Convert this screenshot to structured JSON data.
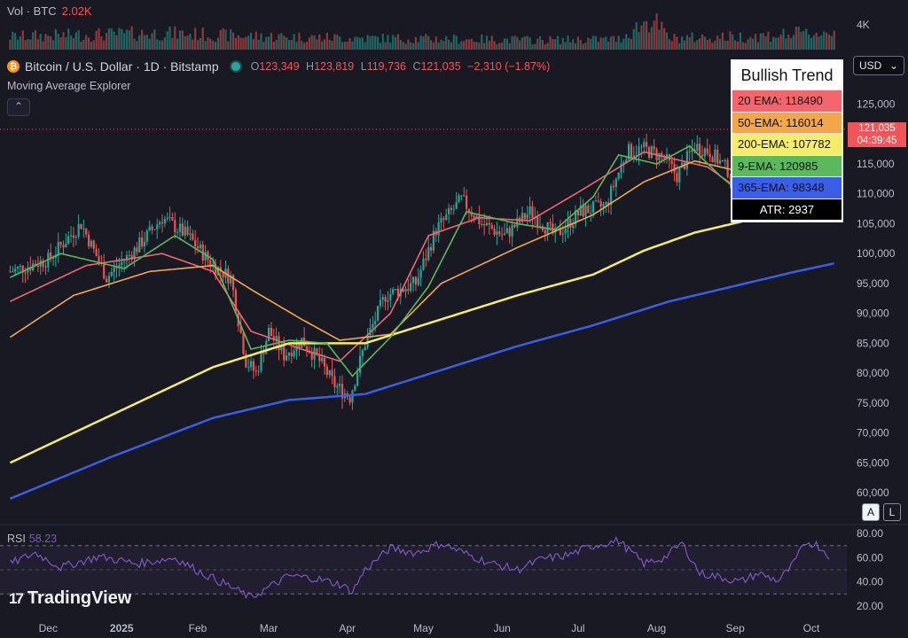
{
  "volume": {
    "label": "Vol · BTC",
    "value": "2.02K",
    "axis_label": "4K"
  },
  "header": {
    "title": "Bitcoin / U.S. Dollar · 1D · Bitstamp",
    "ohlc": [
      {
        "k": "O",
        "v": "123,349"
      },
      {
        "k": "H",
        "v": "123,819"
      },
      {
        "k": "L",
        "v": "119,736"
      },
      {
        "k": "C",
        "v": "121,035"
      }
    ],
    "change": "−2,310 (−1.87%)",
    "indicator": "Moving Average Explorer",
    "collapse_icon": "chevron-up-icon"
  },
  "currency": {
    "selected": "USD"
  },
  "price_tag": {
    "price": "121,035",
    "countdown": "04:39:45"
  },
  "legend": {
    "title": "Bullish Trend",
    "rows": [
      {
        "text": "20 EMA: 118490",
        "color": "#f2666e"
      },
      {
        "text": "50-EMA: 116014",
        "color": "#f5a54a"
      },
      {
        "text": "200-EMA: 107782",
        "color": "#f4ec6a"
      },
      {
        "text": "9-EMA: 120985",
        "color": "#5cb85c"
      },
      {
        "text": "365-EMA: 98348",
        "color": "#3a5ee8"
      }
    ],
    "atr": "ATR: 2937"
  },
  "rsi": {
    "label": "RSI",
    "value": "58.23"
  },
  "scale_buttons": [
    "A",
    "L"
  ],
  "brand": {
    "name": "TradingView"
  },
  "colors": {
    "up": "#26a69a",
    "down": "#ef5350",
    "ema20": "#f2666e",
    "ema50": "#f5a54a",
    "ema200": "#f4ec6a",
    "ema9": "#5cb85c",
    "ema365": "#3a5ee8",
    "rsi": "#7e57c2"
  },
  "chart_data": {
    "type": "line",
    "title": "",
    "price_axis": {
      "ticks": [
        "125,000",
        "120,000",
        "115,000",
        "110,000",
        "105,000",
        "100,000",
        "95,000",
        "90,000",
        "85,000",
        "80,000",
        "75,000",
        "70,000",
        "65,000",
        "60,000"
      ],
      "ylim": [
        56000,
        127000
      ]
    },
    "rsi_axis": {
      "ticks": [
        "80.00",
        "60.00",
        "40.00",
        "20.00"
      ],
      "ylim": [
        17,
        83
      ]
    },
    "x_ticks": [
      "Dec",
      "2025",
      "Feb",
      "Mar",
      "Apr",
      "May",
      "Jun",
      "Jul",
      "Aug",
      "Sep",
      "Oct"
    ],
    "x_tick_days": [
      15,
      44,
      74,
      102,
      133,
      163,
      194,
      224,
      255,
      286,
      316
    ],
    "series": [
      {
        "name": "20 EMA",
        "key": "ema20",
        "values": [
          [
            0,
            92000
          ],
          [
            30,
            98000
          ],
          [
            60,
            100000
          ],
          [
            80,
            97000
          ],
          [
            95,
            87000
          ],
          [
            115,
            84000
          ],
          [
            130,
            82000
          ],
          [
            150,
            90000
          ],
          [
            165,
            103000
          ],
          [
            185,
            106000
          ],
          [
            205,
            105500
          ],
          [
            225,
            110500
          ],
          [
            250,
            117000
          ],
          [
            275,
            114500
          ],
          [
            290,
            110000
          ],
          [
            305,
            113000
          ],
          [
            325,
            118490
          ]
        ]
      },
      {
        "name": "50-EMA",
        "key": "ema50",
        "values": [
          [
            0,
            86000
          ],
          [
            25,
            93000
          ],
          [
            55,
            97000
          ],
          [
            80,
            98000
          ],
          [
            95,
            94000
          ],
          [
            115,
            89000
          ],
          [
            130,
            85500
          ],
          [
            150,
            86500
          ],
          [
            170,
            95000
          ],
          [
            200,
            101000
          ],
          [
            230,
            106500
          ],
          [
            250,
            112000
          ],
          [
            270,
            115500
          ],
          [
            290,
            113500
          ],
          [
            310,
            114000
          ],
          [
            325,
            116014
          ]
        ]
      },
      {
        "name": "200-EMA",
        "key": "ema200",
        "values": [
          [
            0,
            65000
          ],
          [
            40,
            73000
          ],
          [
            80,
            81000
          ],
          [
            110,
            85000
          ],
          [
            140,
            85000
          ],
          [
            170,
            89000
          ],
          [
            200,
            93000
          ],
          [
            230,
            96500
          ],
          [
            250,
            100500
          ],
          [
            270,
            103500
          ],
          [
            290,
            105500
          ],
          [
            305,
            106500
          ],
          [
            325,
            107782
          ]
        ]
      },
      {
        "name": "9-EMA",
        "key": "ema9",
        "values": [
          [
            0,
            96000
          ],
          [
            20,
            100000
          ],
          [
            45,
            97500
          ],
          [
            65,
            103000
          ],
          [
            80,
            99000
          ],
          [
            95,
            84000
          ],
          [
            110,
            85500
          ],
          [
            125,
            85000
          ],
          [
            135,
            79500
          ],
          [
            150,
            86000
          ],
          [
            165,
            94500
          ],
          [
            180,
            107000
          ],
          [
            200,
            105000
          ],
          [
            215,
            104000
          ],
          [
            230,
            109500
          ],
          [
            240,
            116500
          ],
          [
            255,
            115000
          ],
          [
            268,
            118000
          ],
          [
            280,
            113000
          ],
          [
            290,
            109500
          ],
          [
            300,
            112000
          ],
          [
            310,
            113500
          ],
          [
            318,
            121500
          ],
          [
            325,
            120985
          ]
        ]
      },
      {
        "name": "365-EMA",
        "key": "ema365",
        "values": [
          [
            0,
            59000
          ],
          [
            40,
            66000
          ],
          [
            80,
            72500
          ],
          [
            110,
            75500
          ],
          [
            140,
            76500
          ],
          [
            170,
            80500
          ],
          [
            200,
            84500
          ],
          [
            230,
            88000
          ],
          [
            260,
            92000
          ],
          [
            290,
            95000
          ],
          [
            310,
            97000
          ],
          [
            325,
            98348
          ]
        ]
      }
    ],
    "candle_path": [
      [
        0,
        97000
      ],
      [
        15,
        99000
      ],
      [
        28,
        105000
      ],
      [
        38,
        96000
      ],
      [
        50,
        101000
      ],
      [
        60,
        106000
      ],
      [
        70,
        103000
      ],
      [
        80,
        98000
      ],
      [
        87,
        96000
      ],
      [
        93,
        82000
      ],
      [
        97,
        80000
      ],
      [
        102,
        87000
      ],
      [
        108,
        83000
      ],
      [
        115,
        85500
      ],
      [
        122,
        82000
      ],
      [
        128,
        78000
      ],
      [
        134,
        76000
      ],
      [
        140,
        85000
      ],
      [
        148,
        93000
      ],
      [
        160,
        95000
      ],
      [
        168,
        104000
      ],
      [
        178,
        109000
      ],
      [
        186,
        105000
      ],
      [
        195,
        103000
      ],
      [
        205,
        107000
      ],
      [
        215,
        103000
      ],
      [
        225,
        107000
      ],
      [
        235,
        108000
      ],
      [
        243,
        117000
      ],
      [
        250,
        117500
      ],
      [
        258,
        116000
      ],
      [
        263,
        113000
      ],
      [
        270,
        118000
      ],
      [
        276,
        117000
      ],
      [
        283,
        114000
      ],
      [
        290,
        110000
      ],
      [
        297,
        108000
      ],
      [
        305,
        111500
      ],
      [
        312,
        113000
      ],
      [
        318,
        120000
      ],
      [
        321,
        124500
      ],
      [
        325,
        121035
      ]
    ],
    "volume_path": [
      [
        0,
        1.5
      ],
      [
        30,
        1.7
      ],
      [
        60,
        1.9
      ],
      [
        90,
        1.6
      ],
      [
        120,
        1.4
      ],
      [
        150,
        1.3
      ],
      [
        180,
        1.2
      ],
      [
        210,
        1.1
      ],
      [
        240,
        1.2
      ],
      [
        253,
        3.6
      ],
      [
        260,
        1.3
      ],
      [
        290,
        1.5
      ],
      [
        310,
        1.8
      ],
      [
        325,
        2.0
      ]
    ],
    "rsi_path": [
      [
        0,
        55
      ],
      [
        10,
        64
      ],
      [
        20,
        52
      ],
      [
        35,
        61
      ],
      [
        50,
        55
      ],
      [
        65,
        60
      ],
      [
        75,
        48
      ],
      [
        85,
        38
      ],
      [
        95,
        27
      ],
      [
        100,
        33
      ],
      [
        110,
        45
      ],
      [
        120,
        43
      ],
      [
        130,
        38
      ],
      [
        135,
        32
      ],
      [
        140,
        50
      ],
      [
        150,
        68
      ],
      [
        160,
        64
      ],
      [
        170,
        72
      ],
      [
        180,
        63
      ],
      [
        190,
        55
      ],
      [
        200,
        50
      ],
      [
        210,
        59
      ],
      [
        220,
        62
      ],
      [
        230,
        70
      ],
      [
        240,
        74
      ],
      [
        250,
        55
      ],
      [
        258,
        60
      ],
      [
        265,
        72
      ],
      [
        272,
        47
      ],
      [
        280,
        44
      ],
      [
        288,
        40
      ],
      [
        295,
        47
      ],
      [
        303,
        41
      ],
      [
        308,
        52
      ],
      [
        314,
        73
      ],
      [
        318,
        71
      ],
      [
        323,
        62
      ]
    ]
  }
}
